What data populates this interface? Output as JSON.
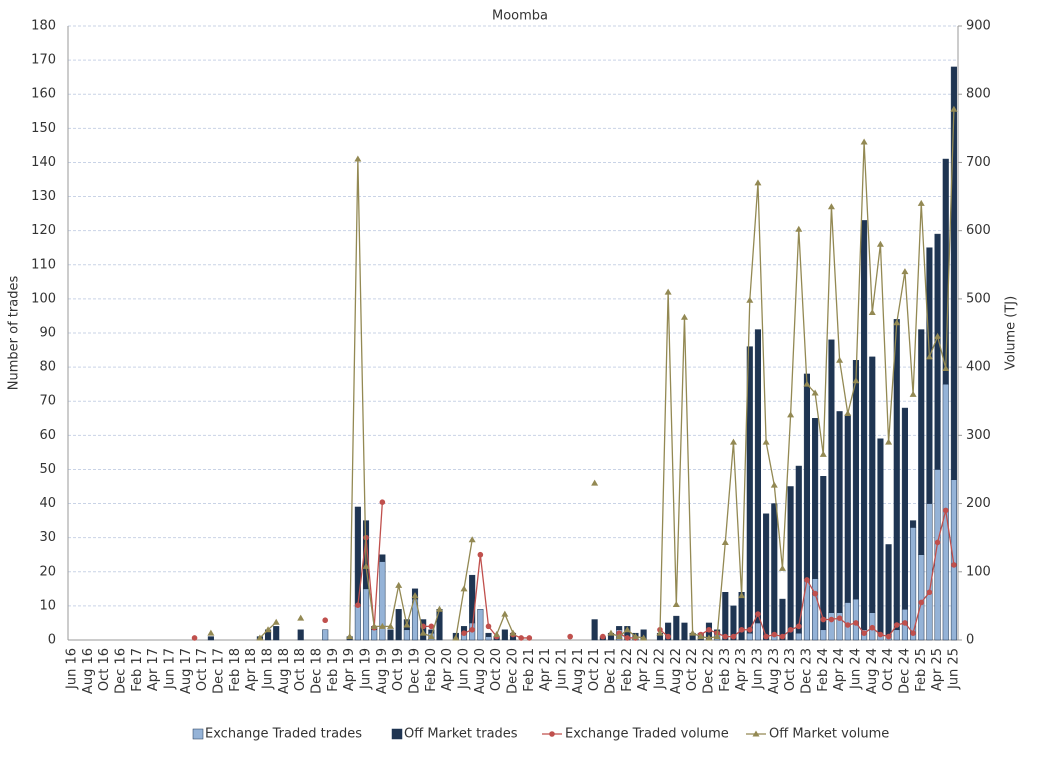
{
  "chart_data": {
    "type": "combo",
    "title": "Moomba",
    "y_label": "Number of trades",
    "y2_label": "Volume (TJ)",
    "categories": [
      "Jun 16",
      null,
      "Aug 16",
      null,
      "Oct 16",
      null,
      "Dec 16",
      null,
      "Feb 17",
      null,
      "Apr 17",
      null,
      "Jun 17",
      null,
      "Aug 17",
      null,
      "Oct 17",
      null,
      "Dec 17",
      null,
      "Feb 18",
      null,
      "Apr 18",
      null,
      "Jun 18",
      null,
      "Aug 18",
      null,
      "Oct 18",
      null,
      "Dec 18",
      null,
      "Feb 19",
      null,
      "Apr 19",
      null,
      "Jun 19",
      null,
      "Aug 19",
      null,
      "Oct 19",
      null,
      "Dec 19",
      null,
      "Feb 20",
      null,
      "Apr 20",
      null,
      "Jun 20",
      null,
      "Aug 20",
      null,
      "Oct 20",
      null,
      "Dec 20",
      null,
      "Feb 21",
      null,
      "Apr 21",
      null,
      "Jun 21",
      null,
      "Aug 21",
      null,
      "Oct 21",
      null,
      "Dec 21",
      null,
      "Feb 22",
      null,
      "Apr 22",
      null,
      "Jun 22",
      null,
      "Aug 22",
      null,
      "Oct 22",
      null,
      "Dec 22",
      null,
      "Feb 23",
      null,
      "Apr 23",
      null,
      "Jun 23",
      null,
      "Aug 23",
      null,
      "Oct 23",
      null,
      "Dec 23",
      null,
      "Feb 24",
      null,
      "Apr 24",
      null,
      "Jun 24",
      null,
      "Aug 24",
      null,
      "Oct 24",
      null,
      "Dec 24",
      null,
      "Feb 25",
      null,
      "Apr 25",
      null,
      "Jun 25"
    ],
    "stacked": true,
    "series": [
      {
        "name": "Exchange Traded trades",
        "type": "bar",
        "color": "#95b3d7",
        "values": [
          0,
          0,
          0,
          0,
          0,
          0,
          0,
          0,
          0,
          0,
          0,
          0,
          0,
          0,
          0,
          0,
          0,
          0,
          0,
          0,
          0,
          0,
          0,
          0,
          0,
          0,
          0,
          0,
          0,
          0,
          0,
          3,
          0,
          0,
          0,
          10,
          15,
          3,
          23,
          0,
          0,
          3,
          12,
          0,
          2,
          0,
          0,
          0,
          2,
          5,
          9,
          1,
          0,
          0,
          0,
          0,
          0,
          0,
          0,
          0,
          0,
          0,
          0,
          0,
          0,
          0,
          0,
          3,
          0,
          1,
          0,
          0,
          0,
          0,
          0,
          0,
          0,
          0,
          0,
          2,
          0,
          0,
          0,
          2,
          5,
          0,
          2,
          0,
          0,
          2,
          18,
          18,
          3,
          8,
          8,
          11,
          12,
          3,
          8,
          2,
          1,
          3,
          9,
          33,
          25,
          40,
          50,
          75,
          47
        ]
      },
      {
        "name": "Off Market trades",
        "type": "bar",
        "color": "#1f3552",
        "values": [
          0,
          0,
          0,
          0,
          0,
          0,
          0,
          0,
          0,
          0,
          0,
          0,
          0,
          0,
          0,
          0,
          0,
          1,
          0,
          0,
          0,
          0,
          0,
          1,
          3,
          4,
          0,
          0,
          3,
          0,
          0,
          0,
          0,
          0,
          1,
          29,
          20,
          1,
          2,
          3,
          9,
          3,
          3,
          6,
          1,
          9,
          0,
          2,
          2,
          14,
          0,
          1,
          1,
          3,
          2,
          0,
          0,
          0,
          0,
          0,
          0,
          0,
          0,
          0,
          6,
          1,
          2,
          1,
          4,
          1,
          3,
          0,
          2,
          5,
          7,
          5,
          2,
          2,
          5,
          1,
          14,
          10,
          14,
          84,
          86,
          37,
          38,
          12,
          45,
          49,
          60,
          47,
          45,
          80,
          59,
          55,
          70,
          120,
          75,
          57,
          27,
          91,
          59,
          2,
          66,
          75,
          69,
          66,
          121
        ]
      },
      {
        "name": "Exchange Traded volume",
        "type": "line",
        "marker": "circle",
        "axis": "y2",
        "color": "#c0504d",
        "values": [
          null,
          null,
          null,
          null,
          null,
          null,
          null,
          null,
          null,
          null,
          null,
          null,
          null,
          null,
          null,
          3,
          null,
          null,
          null,
          null,
          null,
          null,
          null,
          null,
          null,
          null,
          null,
          null,
          null,
          null,
          null,
          29,
          null,
          null,
          null,
          51,
          150,
          18,
          202,
          null,
          null,
          null,
          null,
          20,
          20,
          null,
          null,
          null,
          10,
          15,
          125,
          20,
          5,
          null,
          8,
          3,
          3,
          null,
          null,
          null,
          null,
          5,
          null,
          null,
          null,
          5,
          null,
          10,
          3,
          3,
          null,
          null,
          15,
          5,
          null,
          null,
          null,
          8,
          15,
          10,
          5,
          5,
          15,
          15,
          38,
          5,
          8,
          5,
          15,
          20,
          88,
          68,
          30,
          30,
          32,
          22,
          25,
          10,
          18,
          8,
          5,
          22,
          25,
          10,
          55,
          70,
          143,
          190,
          110
        ]
      },
      {
        "name": "Off Market volume",
        "type": "line",
        "marker": "triangle",
        "axis": "y2",
        "color": "#938953",
        "values": [
          null,
          null,
          null,
          null,
          null,
          null,
          null,
          null,
          null,
          null,
          null,
          null,
          null,
          null,
          null,
          null,
          null,
          10,
          null,
          null,
          null,
          null,
          null,
          3,
          15,
          26,
          null,
          null,
          32,
          null,
          null,
          null,
          null,
          null,
          5,
          705,
          108,
          20,
          20,
          20,
          80,
          22,
          65,
          10,
          5,
          45,
          null,
          3,
          75,
          147,
          null,
          null,
          8,
          38,
          10,
          null,
          null,
          null,
          null,
          null,
          null,
          null,
          null,
          null,
          230,
          null,
          10,
          5,
          15,
          5,
          3,
          null,
          10,
          510,
          52,
          473,
          10,
          5,
          3,
          5,
          143,
          290,
          65,
          498,
          670,
          290,
          227,
          105,
          330,
          602,
          375,
          362,
          272,
          635,
          410,
          332,
          380,
          730,
          480,
          580,
          290,
          465,
          540,
          360,
          640,
          415,
          445,
          398,
          778
        ]
      }
    ],
    "ylim": [
      0,
      180
    ],
    "yticks": [
      0,
      10,
      20,
      30,
      40,
      50,
      60,
      70,
      80,
      90,
      100,
      110,
      120,
      130,
      140,
      150,
      160,
      170,
      180
    ],
    "y2lim": [
      0,
      900
    ],
    "y2ticks": [
      0,
      100,
      200,
      300,
      400,
      500,
      600,
      700,
      800,
      900
    ],
    "grid": true,
    "legend": "bottom"
  }
}
